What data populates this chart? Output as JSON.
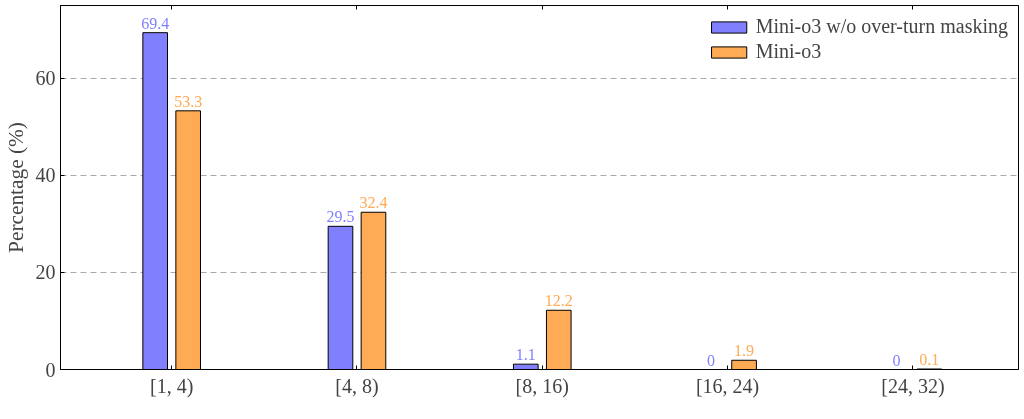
{
  "chart_data": {
    "type": "bar",
    "ylabel": "Percentage (%)",
    "categories": [
      "[1, 4)",
      "[4, 8)",
      "[8, 16)",
      "[16, 24)",
      "[24, 32)"
    ],
    "series": [
      {
        "name": "Mini-o3 w/o over-turn masking",
        "color": "#8080ff",
        "values": [
          69.4,
          29.5,
          1.1,
          0,
          0
        ]
      },
      {
        "name": "Mini-o3",
        "color": "#ffaa55",
        "values": [
          53.3,
          32.4,
          12.2,
          1.9,
          0.1
        ]
      }
    ],
    "ylim": [
      0,
      75
    ],
    "yticks": [
      0,
      20,
      40,
      60
    ],
    "grid": "y",
    "legend": "top right",
    "data_labels": true
  }
}
